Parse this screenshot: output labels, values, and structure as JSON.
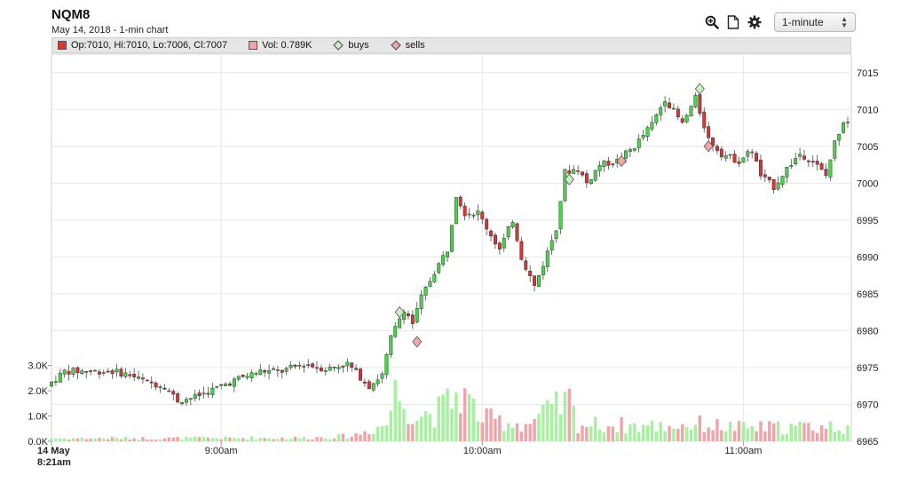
{
  "header": {
    "symbol": "NQM8",
    "subtitle": "May 14, 2018 - 1-min chart",
    "interval_value": "1-minute"
  },
  "icons": [
    "zoom-in-icon",
    "document-icon",
    "gear-icon"
  ],
  "legend": {
    "ohlc": "Op:7010, Hi:7010, Lo:7006, Cl:7007",
    "volume": "Vol: 0.789K",
    "buys": "buys",
    "sells": "sells"
  },
  "colors": {
    "up": "#4cd34c",
    "down": "#d23838",
    "vol_up": "#a6f0a0",
    "vol_down": "#f0a3a8",
    "buy_marker": "#c8f0c0",
    "sell_marker": "#f0a8a8"
  },
  "chart_data": {
    "type": "candlestick",
    "x_tick_labels": [
      {
        "time": "08:21",
        "label_line1": "14 May",
        "label_line2": "8:21am"
      },
      {
        "time": "09:00",
        "label_line1": "9:00am"
      },
      {
        "time": "10:00",
        "label_line1": "10:00am"
      },
      {
        "time": "11:00",
        "label_line1": "11:00am"
      }
    ],
    "x_range": [
      "08:21",
      "11:24"
    ],
    "y_price_ticks": [
      6965,
      6970,
      6975,
      6980,
      6985,
      6990,
      6995,
      7000,
      7005,
      7010,
      7015
    ],
    "y_price_range": [
      6965,
      7017.5
    ],
    "y_volume_ticks": [
      {
        "value": 0,
        "label": "0.0K"
      },
      {
        "value": 1000,
        "label": "1.0K"
      },
      {
        "value": 2000,
        "label": "2.0K"
      },
      {
        "value": 3000,
        "label": "3.0K"
      }
    ],
    "grid": true,
    "price_keypoints": [
      [
        "08:21",
        6972.5
      ],
      [
        "08:25",
        6974.5
      ],
      [
        "08:30",
        6974.5
      ],
      [
        "08:36",
        6974.5
      ],
      [
        "08:40",
        6974
      ],
      [
        "08:44",
        6973
      ],
      [
        "08:48",
        6972.5
      ],
      [
        "08:51",
        6970.5
      ],
      [
        "08:55",
        6971
      ],
      [
        "08:59",
        6972
      ],
      [
        "09:05",
        6973.5
      ],
      [
        "09:10",
        6974.5
      ],
      [
        "09:15",
        6974.5
      ],
      [
        "09:20",
        6975.5
      ],
      [
        "09:25",
        6974.8
      ],
      [
        "09:30",
        6975.5
      ],
      [
        "09:35",
        6972.5
      ],
      [
        "09:38",
        6974
      ],
      [
        "09:40",
        6979
      ],
      [
        "09:43",
        6983
      ],
      [
        "09:45",
        6981
      ],
      [
        "09:47",
        6984.5
      ],
      [
        "09:50",
        6988
      ],
      [
        "09:53",
        6991
      ],
      [
        "09:55",
        6998.5
      ],
      [
        "09:57",
        6996
      ],
      [
        "10:00",
        6996
      ],
      [
        "10:03",
        6993
      ],
      [
        "10:05",
        6991
      ],
      [
        "10:08",
        6995
      ],
      [
        "10:10",
        6990
      ],
      [
        "10:13",
        6986
      ],
      [
        "10:15",
        6989
      ],
      [
        "10:18",
        6994
      ],
      [
        "10:20",
        7001.5
      ],
      [
        "10:23",
        7002
      ],
      [
        "10:25",
        7000
      ],
      [
        "10:28",
        7002.5
      ],
      [
        "10:32",
        7003
      ],
      [
        "10:36",
        7005
      ],
      [
        "10:40",
        7008
      ],
      [
        "10:43",
        7011.5
      ],
      [
        "10:47",
        7008
      ],
      [
        "10:50",
        7011.5
      ],
      [
        "10:53",
        7006
      ],
      [
        "10:56",
        7004
      ],
      [
        "11:00",
        7003
      ],
      [
        "11:03",
        7004.5
      ],
      [
        "11:05",
        7001
      ],
      [
        "11:08",
        6999.5
      ],
      [
        "11:11",
        7002
      ],
      [
        "11:14",
        7004
      ],
      [
        "11:17",
        7003
      ],
      [
        "11:20",
        7001
      ],
      [
        "11:22",
        7005.5
      ],
      [
        "11:24",
        7008.5
      ]
    ],
    "volume_keypoints": [
      [
        "08:21",
        150
      ],
      [
        "09:20",
        180
      ],
      [
        "09:30",
        280
      ],
      [
        "09:38",
        900
      ],
      [
        "09:40",
        2600
      ],
      [
        "09:45",
        1400
      ],
      [
        "09:50",
        1600
      ],
      [
        "09:55",
        2600
      ],
      [
        "10:00",
        1200
      ],
      [
        "10:10",
        900
      ],
      [
        "10:20",
        2100
      ],
      [
        "10:22",
        900
      ],
      [
        "10:40",
        800
      ],
      [
        "10:50",
        900
      ],
      [
        "11:00",
        700
      ],
      [
        "11:24",
        800
      ]
    ],
    "buys": [
      {
        "time": "09:41",
        "price": 6982.5
      },
      {
        "time": "10:20",
        "price": 7000.5
      },
      {
        "time": "10:50",
        "price": 7012.8
      }
    ],
    "sells": [
      {
        "time": "09:45",
        "price": 6978.5
      },
      {
        "time": "10:32",
        "price": 7003
      },
      {
        "time": "10:52",
        "price": 7005
      }
    ]
  }
}
